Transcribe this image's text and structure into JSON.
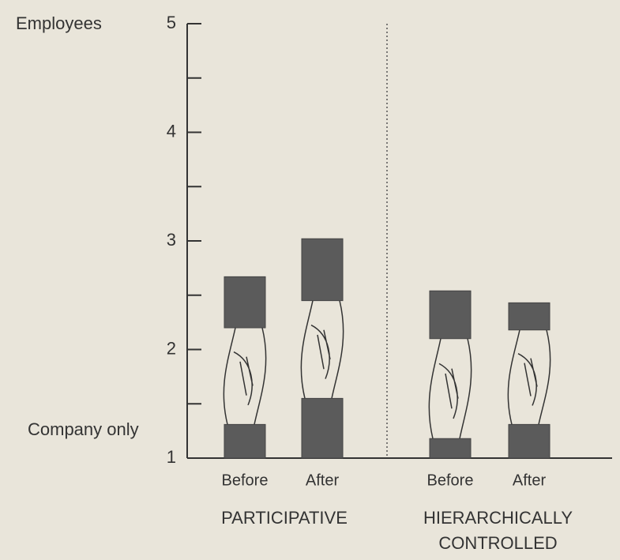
{
  "chart_data": {
    "type": "range",
    "ylabel_top": "Employees",
    "ylabel_bottom": "Company only",
    "categories": [
      "Before",
      "After",
      "Before",
      "After"
    ],
    "groups": [
      {
        "label": "PARTICIPATIVE",
        "size": 2
      },
      {
        "label": "HIERARCHICALLY CONTROLLED",
        "size": 2
      }
    ],
    "company": {
      "low": [
        1,
        1,
        1,
        1
      ],
      "high": [
        1.31,
        1.55,
        1.18,
        1.31
      ]
    },
    "employees": {
      "low": [
        2.2,
        2.45,
        2.1,
        2.18
      ],
      "high": [
        2.67,
        3.02,
        2.54,
        2.43
      ]
    },
    "color": "#5b5b5b",
    "ylim": [
      1,
      5
    ],
    "yticks": [
      1,
      2,
      3,
      4,
      5
    ],
    "minor_yticks": [
      1.5,
      2.5,
      3.5,
      4.5
    ]
  }
}
